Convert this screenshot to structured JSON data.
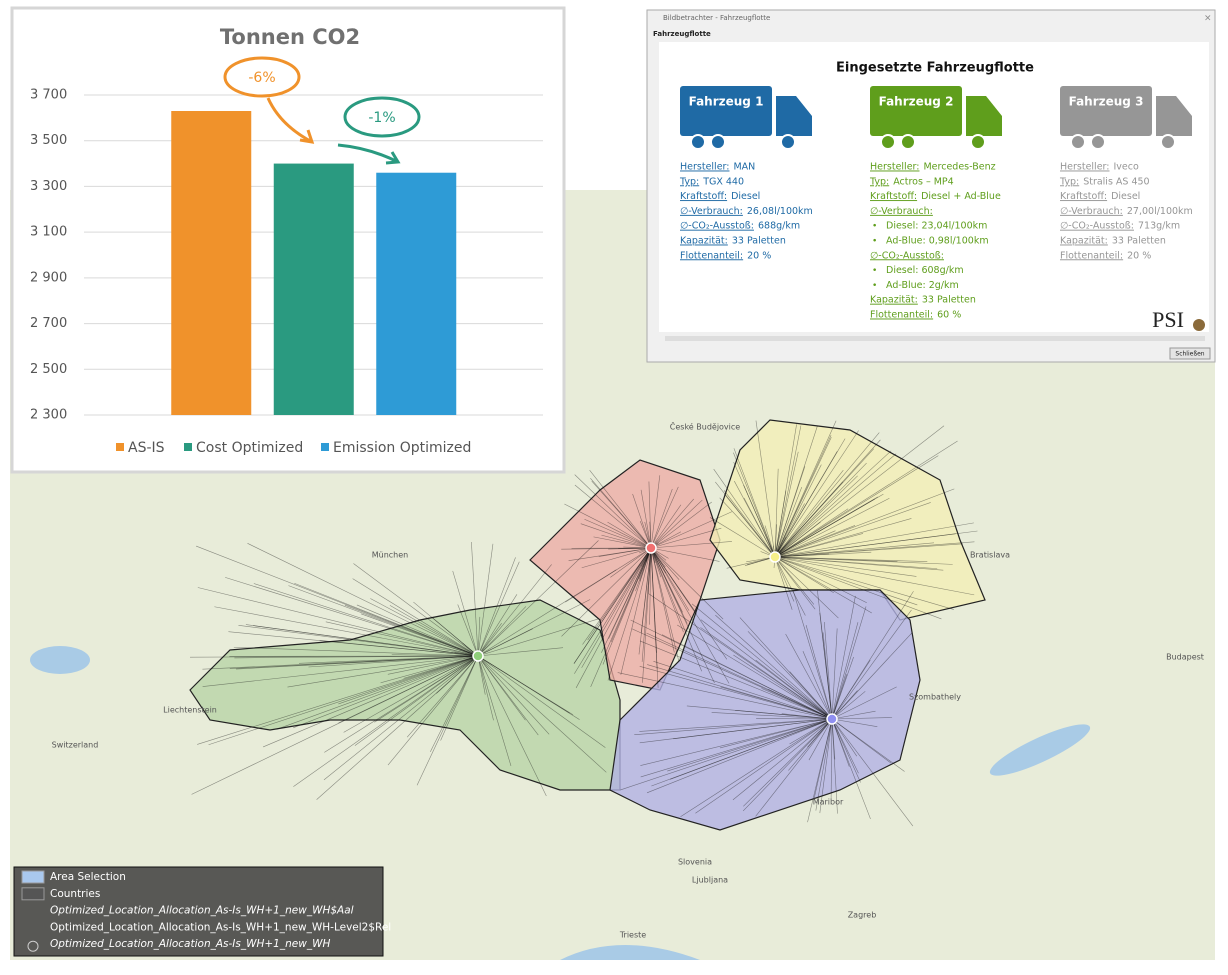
{
  "chart_data": {
    "type": "bar",
    "title": "Tonnen CO2",
    "categories": [
      "AS-IS",
      "Cost Optimized",
      "Emission Optimized"
    ],
    "values": [
      3630,
      3400,
      3360
    ],
    "colors": [
      "#f0922b",
      "#2a9a80",
      "#2e9bd6"
    ],
    "ylim": [
      2300,
      3700
    ],
    "yticks": [
      {
        "value": 2300,
        "label": "2 300"
      },
      {
        "value": 2500,
        "label": "2 500"
      },
      {
        "value": 2700,
        "label": "2 700"
      },
      {
        "value": 2900,
        "label": "2 900"
      },
      {
        "value": 3100,
        "label": "3 100"
      },
      {
        "value": 3300,
        "label": "3 300"
      },
      {
        "value": 3500,
        "label": "3 500"
      },
      {
        "value": 3700,
        "label": "3 700"
      }
    ],
    "grid": true,
    "annotations": [
      "-6%",
      "-1%"
    ],
    "legend": "bottom"
  },
  "dialog": {
    "window_title": "Bildbetrachter - Fahrzeugflotte",
    "tab": "Fahrzeugflotte",
    "heading": "Eingesetzte Fahrzeugflotte",
    "button": "Schließen",
    "logo": "PSI",
    "vehicles": [
      {
        "name": "Fahrzeug 1",
        "color": "#1f6aa5",
        "lines": [
          {
            "label": "Hersteller:",
            "value": "MAN"
          },
          {
            "label": "Typ:",
            "value": "TGX 440"
          },
          {
            "label": "Kraftstoff:",
            "value": "Diesel"
          },
          {
            "label": "∅-Verbrauch:",
            "value": "26,08l/100km"
          },
          {
            "label": "∅-CO₂-Ausstoß:",
            "value": "688g/km"
          },
          {
            "label": "Kapazität:",
            "value": "33 Paletten"
          },
          {
            "label": "Flottenanteil:",
            "value": "20 %"
          }
        ]
      },
      {
        "name": "Fahrzeug 2",
        "color": "#5f9e1c",
        "lines": [
          {
            "label": "Hersteller:",
            "value": "Mercedes-Benz"
          },
          {
            "label": "Typ:",
            "value": "Actros – MP4"
          },
          {
            "label": "Kraftstoff:",
            "value": "Diesel + Ad-Blue"
          },
          {
            "label": "∅-Verbrauch:",
            "value": ""
          },
          {
            "bullet": "Diesel: 23,04l/100km"
          },
          {
            "bullet": "Ad-Blue: 0,98l/100km"
          },
          {
            "label": "∅-CO₂-Ausstoß:",
            "value": ""
          },
          {
            "bullet": "Diesel: 608g/km"
          },
          {
            "bullet": "Ad-Blue: 2g/km"
          },
          {
            "label": "Kapazität:",
            "value": "33 Paletten"
          },
          {
            "label": "Flottenanteil:",
            "value": "60 %"
          }
        ]
      },
      {
        "name": "Fahrzeug 3",
        "color": "#969696",
        "lines": [
          {
            "label": "Hersteller:",
            "value": "Iveco"
          },
          {
            "label": "Typ:",
            "value": "Stralis AS 450"
          },
          {
            "label": "Kraftstoff:",
            "value": "Diesel"
          },
          {
            "label": "∅-Verbrauch:",
            "value": "27,00l/100km"
          },
          {
            "label": "∅-CO₂-Ausstoß:",
            "value": "713g/km"
          },
          {
            "label": "Kapazität:",
            "value": "33 Paletten"
          },
          {
            "label": "Flottenanteil:",
            "value": "20 %"
          }
        ]
      }
    ]
  },
  "map": {
    "labels": [
      "München",
      "Liechtenstein",
      "Switzerland",
      "Slovenia",
      "Ljubljana",
      "Zagreb",
      "Budapest",
      "Trieste",
      "České Budějovice",
      "Bratislava",
      "Szombathely",
      "Maribor"
    ],
    "legend": [
      "Area Selection",
      "Countries",
      "Optimized_Location_Allocation_As-Is_WH+1_new_WH$Aal",
      "Optimized_Location_Allocation_As-Is_WH+1_new_WH-Level2$Rel",
      "Optimized_Location_Allocation_As-Is_WH+1_new_WH"
    ]
  }
}
